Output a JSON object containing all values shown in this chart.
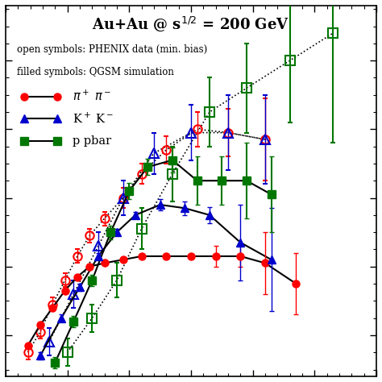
{
  "xlim": [
    0.0,
    3.0
  ],
  "ylim": [
    -0.06,
    0.48
  ],
  "pi_open_x": [
    0.18,
    0.28,
    0.38,
    0.48,
    0.58,
    0.68,
    0.8,
    0.95,
    1.1,
    1.3,
    1.55,
    1.8,
    2.1
  ],
  "pi_open_y": [
    -0.025,
    0.005,
    0.045,
    0.08,
    0.115,
    0.145,
    0.17,
    0.2,
    0.235,
    0.27,
    0.3,
    0.295,
    0.285
  ],
  "pi_open_yerr": [
    0.01,
    0.01,
    0.01,
    0.01,
    0.01,
    0.01,
    0.01,
    0.015,
    0.015,
    0.02,
    0.025,
    0.035,
    0.06
  ],
  "pi_filled_x": [
    0.18,
    0.28,
    0.38,
    0.48,
    0.58,
    0.68,
    0.8,
    0.95,
    1.1,
    1.3,
    1.5,
    1.7,
    1.9,
    2.1,
    2.35
  ],
  "pi_filled_y": [
    -0.015,
    0.015,
    0.04,
    0.065,
    0.085,
    0.1,
    0.105,
    0.11,
    0.115,
    0.115,
    0.115,
    0.115,
    0.115,
    0.105,
    0.075
  ],
  "pi_filled_yerr": [
    0.003,
    0.003,
    0.003,
    0.003,
    0.003,
    0.003,
    0.003,
    0.003,
    0.003,
    0.003,
    0.003,
    0.015,
    0.015,
    0.045,
    0.045
  ],
  "K_open_x": [
    0.35,
    0.55,
    0.75,
    0.95,
    1.2,
    1.5,
    1.8,
    2.1
  ],
  "K_open_y": [
    -0.01,
    0.06,
    0.13,
    0.2,
    0.265,
    0.295,
    0.295,
    0.285
  ],
  "K_open_yerr": [
    0.02,
    0.02,
    0.02,
    0.025,
    0.03,
    0.04,
    0.055,
    0.065
  ],
  "K_filled_x": [
    0.28,
    0.45,
    0.6,
    0.75,
    0.9,
    1.05,
    1.25,
    1.45,
    1.65,
    1.9,
    2.15
  ],
  "K_filled_y": [
    -0.03,
    0.025,
    0.07,
    0.115,
    0.15,
    0.175,
    0.19,
    0.185,
    0.175,
    0.135,
    0.11
  ],
  "K_filled_yerr": [
    0.005,
    0.005,
    0.005,
    0.005,
    0.005,
    0.005,
    0.008,
    0.01,
    0.012,
    0.055,
    0.075
  ],
  "p_open_x": [
    0.5,
    0.7,
    0.9,
    1.1,
    1.35,
    1.65,
    1.95,
    2.3,
    2.65
  ],
  "p_open_y": [
    -0.025,
    0.025,
    0.08,
    0.155,
    0.235,
    0.325,
    0.36,
    0.4,
    0.44
  ],
  "p_open_yerr": [
    0.02,
    0.02,
    0.025,
    0.03,
    0.04,
    0.05,
    0.065,
    0.09,
    0.16
  ],
  "p_filled_x": [
    0.4,
    0.55,
    0.7,
    0.85,
    1.0,
    1.15,
    1.35,
    1.55,
    1.75,
    1.95,
    2.15
  ],
  "p_filled_y": [
    -0.04,
    0.02,
    0.08,
    0.15,
    0.21,
    0.245,
    0.255,
    0.225,
    0.225,
    0.225,
    0.205
  ],
  "p_filled_yerr": [
    0.008,
    0.008,
    0.008,
    0.01,
    0.012,
    0.012,
    0.018,
    0.035,
    0.035,
    0.055,
    0.055
  ],
  "color_pi": "#ff0000",
  "color_K": "#0000cc",
  "color_p": "#007700",
  "line_color": "#000000",
  "bg_color": "#ffffff"
}
